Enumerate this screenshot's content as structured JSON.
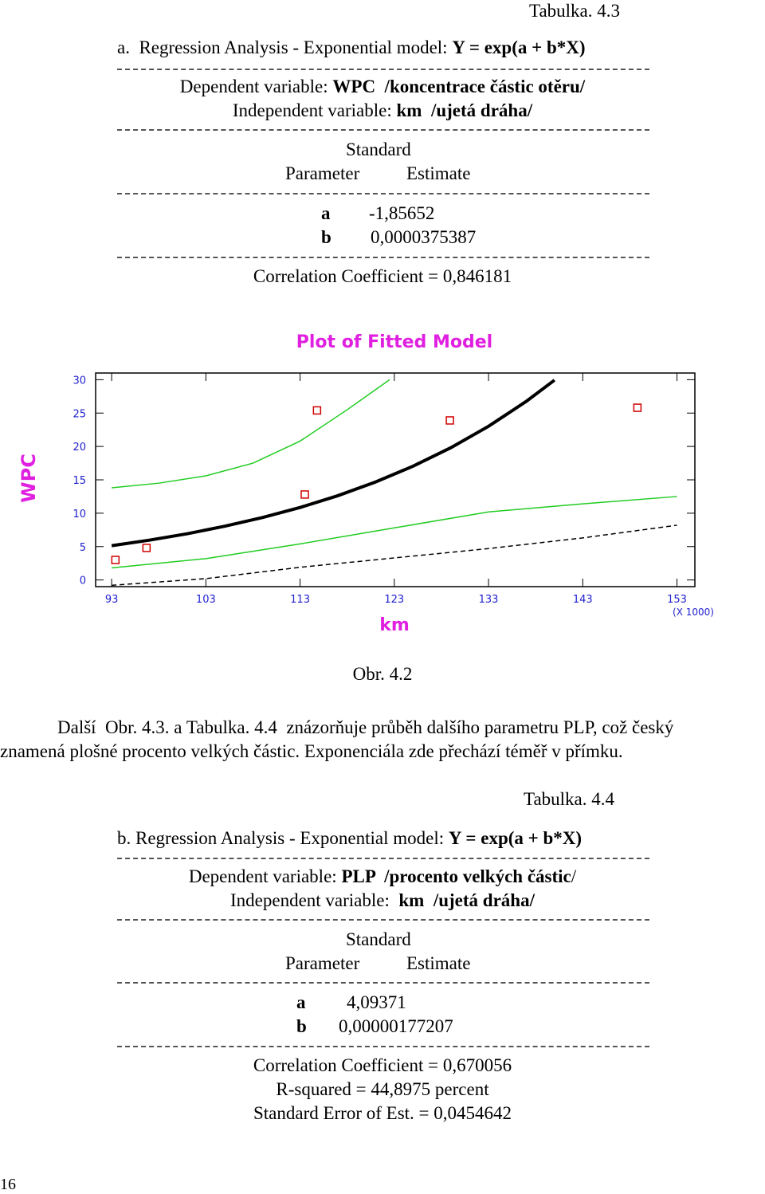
{
  "table_label_1": "Tabulka. 4.3",
  "model_1": {
    "prefix": "a.  Regression Analysis - Exponential model: ",
    "formula": "Y = exp(a + b*X)",
    "dependent_label": "Dependent variable: ",
    "dependent": "WPC  /koncentrace částic otěru/",
    "independent_label": "Independent variable: ",
    "independent": "km  /ujetá dráha/",
    "header_top": "Standard",
    "header_param": "Parameter",
    "header_est": "Estimate",
    "rows": [
      [
        "a",
        "-1,85652"
      ],
      [
        "b",
        "0,0000375387"
      ]
    ],
    "stats": [
      "Correlation Coefficient = 0,846181"
    ]
  },
  "chart_data": {
    "type": "scatter",
    "title": "Plot of Fitted Model",
    "x_label": "km",
    "y_label": "WPC",
    "x_multiplier": "(X 1000)",
    "xlim": [
      91.3,
      154.9
    ],
    "ylim": [
      -1,
      31
    ],
    "xticks": [
      93,
      103,
      113,
      123,
      133,
      143,
      153
    ],
    "yticks": [
      0,
      5,
      10,
      15,
      20,
      25,
      30
    ],
    "points": {
      "color": "#d00000",
      "x": [
        93.4,
        96.7,
        113.5,
        114.8,
        128.9,
        148.8
      ],
      "values": [
        3.0,
        4.8,
        12.8,
        25.4,
        23.9,
        25.8
      ]
    },
    "fitted": {
      "color": "#000000",
      "x": [
        93,
        97,
        101,
        105,
        109,
        113,
        117,
        121,
        125,
        129,
        133,
        137,
        140
      ],
      "values": [
        5.13,
        5.96,
        6.92,
        8.05,
        9.35,
        10.86,
        12.62,
        14.67,
        17.05,
        19.81,
        23.02,
        26.75,
        29.93
      ]
    },
    "confidence_upper": {
      "color": "#22cc22",
      "x": [
        93,
        98,
        103,
        108,
        113,
        118,
        122.5
      ],
      "values": [
        13.8,
        14.5,
        15.6,
        17.5,
        20.8,
        25.5,
        30
      ]
    },
    "confidence_lower": {
      "color": "#22cc22",
      "x": [
        93,
        103,
        113,
        123,
        133,
        143,
        153
      ],
      "values": [
        1.8,
        3.2,
        5.4,
        7.8,
        10.2,
        11.4,
        12.5
      ]
    },
    "prediction_lower": {
      "color": "#000000",
      "x": [
        93,
        103,
        113,
        123,
        133,
        143,
        153
      ],
      "values": [
        -0.8,
        0.2,
        1.9,
        3.3,
        4.7,
        6.3,
        8.2
      ]
    }
  },
  "caption": "Obr. 4.2",
  "paragraph": [
    "Další  Obr. 4.3. a Tabulka. 4.4  znázorňuje průběh dalšího parametru PLP, což český",
    "znamená plošné procento velkých částic. Exponenciála zde přechází téměř v přímku."
  ],
  "table_label_2": "Tabulka. 4.4",
  "model_2": {
    "prefix": "b. Regression Analysis - Exponential model: ",
    "formula": "Y = exp(a + b*X)",
    "dependent_label": "Dependent variable: ",
    "dependent": "PLP  /procento velkých částic",
    "dependent_tail": "/",
    "independent_label": "Independent variable:  ",
    "independent": "km  /ujetá dráha/",
    "header_top": "Standard",
    "header_param": "Parameter",
    "header_est": "Estimate",
    "rows": [
      [
        "a",
        "4,09371"
      ],
      [
        "b",
        "0,00000177207"
      ]
    ],
    "stats": [
      "Correlation Coefficient = 0,670056",
      "R-squared = 44,8975 percent",
      "Standard Error of Est. = 0,0454642"
    ]
  },
  "page_number": "16"
}
